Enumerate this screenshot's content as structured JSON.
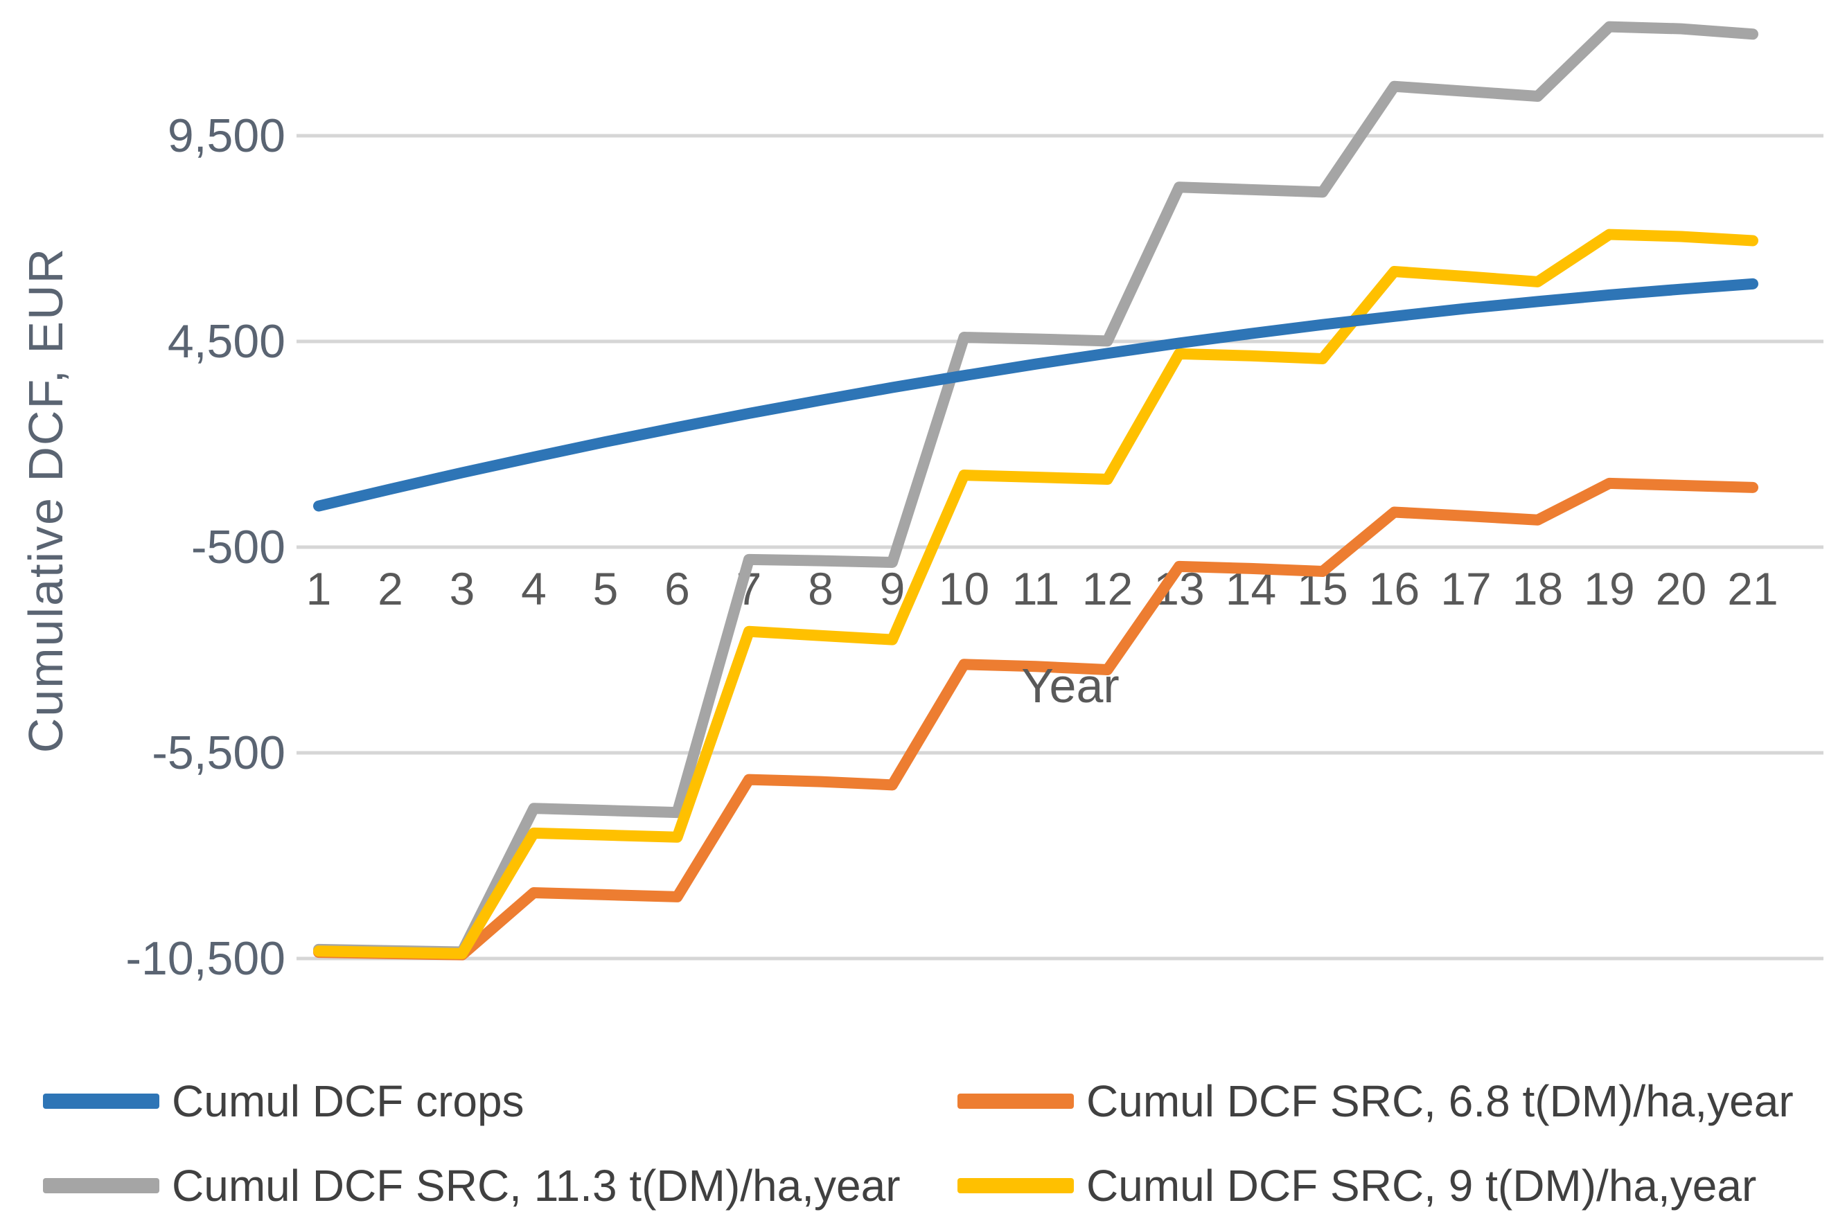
{
  "chart_data": {
    "type": "line",
    "title": "",
    "xlabel": "Year",
    "ylabel": "Cumulative DCF, EUR",
    "x": [
      "1",
      "2",
      "3",
      "4",
      "5",
      "6",
      "7",
      "8",
      "9",
      "10",
      "11",
      "12",
      "13",
      "14",
      "15",
      "16",
      "17",
      "18",
      "19",
      "20",
      "21"
    ],
    "y_ticks": [
      {
        "label": "9,500",
        "value": 9500
      },
      {
        "label": "4,500",
        "value": 4500
      },
      {
        "label": "-500",
        "value": -500
      },
      {
        "label": "-5,500",
        "value": -5500
      },
      {
        "label": "-10,500",
        "value": -10500
      }
    ],
    "ylim": [
      -11600,
      12900
    ],
    "grid": "horizontal",
    "legend_position": "bottom",
    "series": [
      {
        "name": "Cumul DCF crops",
        "color": "#2E75B6",
        "values": [
          500,
          910,
          1310,
          1690,
          2060,
          2410,
          2750,
          3070,
          3380,
          3670,
          3950,
          4210,
          4460,
          4690,
          4910,
          5110,
          5300,
          5470,
          5630,
          5770,
          5900
        ]
      },
      {
        "name": "Cumul DCF SRC, 6.8 t(DM)/ha,year",
        "color": "#ED7D31",
        "values": [
          -10350,
          -10380,
          -10410,
          -8900,
          -8950,
          -9000,
          -6150,
          -6200,
          -6280,
          -3350,
          -3400,
          -3480,
          -970,
          -1020,
          -1090,
          350,
          260,
          160,
          1050,
          1000,
          950
        ]
      },
      {
        "name": "Cumul DCF SRC, 11.3 t(DM)/ha,year",
        "color": "#A5A5A5",
        "values": [
          -10280,
          -10310,
          -10340,
          -6850,
          -6900,
          -6950,
          -800,
          -830,
          -870,
          4600,
          4560,
          4510,
          8250,
          8190,
          8130,
          10700,
          10580,
          10460,
          12150,
          12100,
          11970
        ]
      },
      {
        "name": "Cumul DCF SRC, 9 t(DM)/ha,year",
        "color": "#FFC000",
        "values": [
          -10320,
          -10350,
          -10380,
          -7450,
          -7500,
          -7550,
          -2550,
          -2650,
          -2750,
          1250,
          1200,
          1150,
          4200,
          4150,
          4080,
          6200,
          6080,
          5950,
          7100,
          7050,
          6950
        ]
      }
    ]
  }
}
